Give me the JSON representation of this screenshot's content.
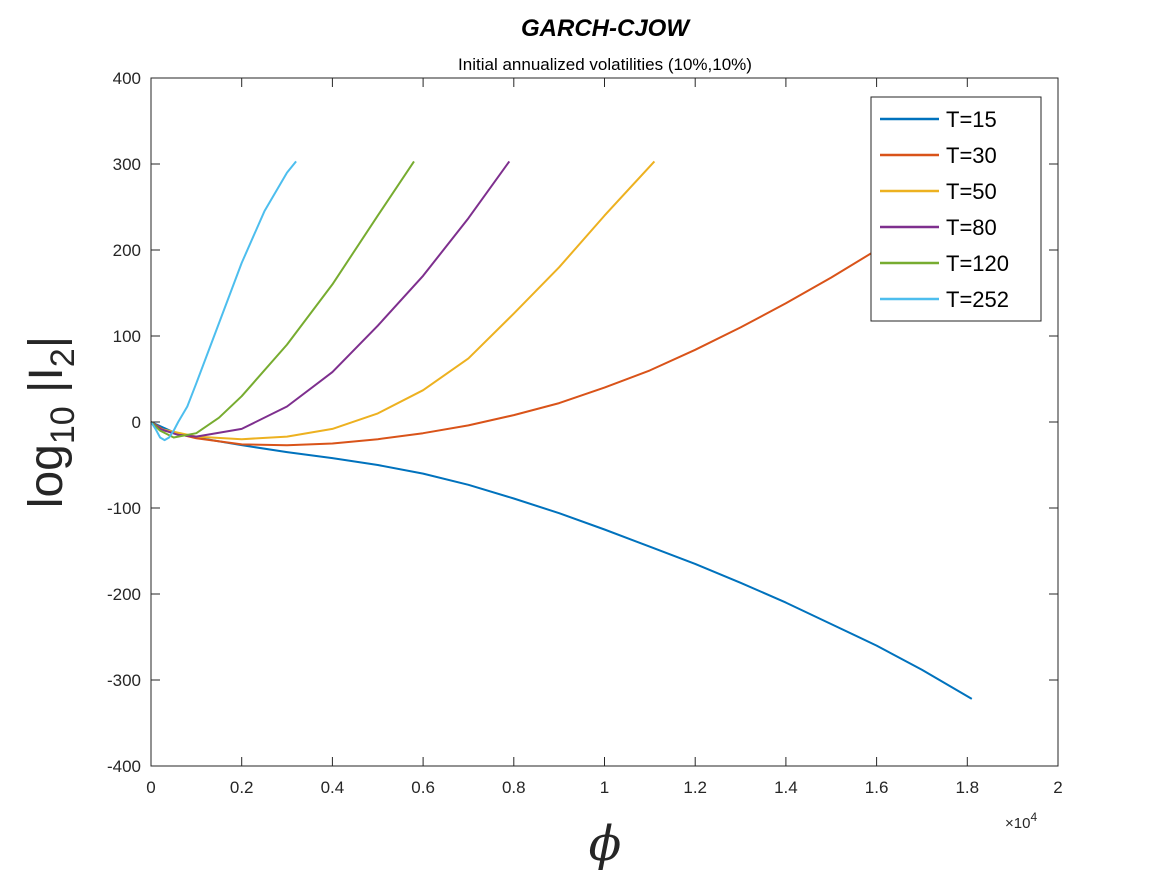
{
  "chart_data": {
    "type": "line",
    "title": "GARCH-CJOW",
    "subtitle": "Initial annualized volatilities (10%,10%)",
    "xlabel": "ϕ",
    "ylabel": "log10 |I2|",
    "ylabel_parts": {
      "base": "log",
      "sub1": "10",
      "mid": " |I",
      "sub2": "2",
      "end": "|"
    },
    "x_multiplier": "×10",
    "x_multiplier_exp": "4",
    "xlim": [
      0,
      2
    ],
    "ylim": [
      -400,
      400
    ],
    "xticks": [
      "0",
      "0.2",
      "0.4",
      "0.6",
      "0.8",
      "1",
      "1.2",
      "1.4",
      "1.6",
      "1.8",
      "2"
    ],
    "yticks": [
      "400",
      "300",
      "200",
      "100",
      "0",
      "-100",
      "-200",
      "-300",
      "-400"
    ],
    "grid": false,
    "legend_position": "top-right",
    "series": [
      {
        "name": "T=15",
        "color": "#0072BD",
        "x": [
          0,
          0.05,
          0.1,
          0.2,
          0.3,
          0.4,
          0.5,
          0.6,
          0.7,
          0.8,
          0.9,
          1.0,
          1.1,
          1.2,
          1.3,
          1.4,
          1.5,
          1.6,
          1.7,
          1.81
        ],
        "y": [
          0,
          -12,
          -18,
          -27,
          -35,
          -42,
          -50,
          -60,
          -73,
          -89,
          -106,
          -125,
          -145,
          -165,
          -187,
          -210,
          -235,
          -260,
          -288,
          -322
        ]
      },
      {
        "name": "T=30",
        "color": "#D95319",
        "x": [
          0,
          0.03,
          0.1,
          0.2,
          0.3,
          0.4,
          0.5,
          0.6,
          0.7,
          0.8,
          0.9,
          1.0,
          1.1,
          1.2,
          1.3,
          1.4,
          1.5,
          1.6
        ],
        "y": [
          0,
          -10,
          -19,
          -26,
          -27,
          -25,
          -20,
          -13,
          -4,
          8,
          22,
          40,
          60,
          84,
          110,
          138,
          168,
          200
        ]
      },
      {
        "name": "T=50",
        "color": "#EDB120",
        "x": [
          0,
          0.02,
          0.1,
          0.2,
          0.3,
          0.4,
          0.5,
          0.6,
          0.7,
          0.8,
          0.9,
          1.0,
          1.11
        ],
        "y": [
          0,
          -8,
          -17,
          -20,
          -17,
          -8,
          10,
          37,
          74,
          126,
          180,
          240,
          303
        ]
      },
      {
        "name": "T=80",
        "color": "#7E2F8E",
        "x": [
          0,
          0.02,
          0.06,
          0.1,
          0.2,
          0.3,
          0.4,
          0.5,
          0.6,
          0.7,
          0.79
        ],
        "y": [
          0,
          -8,
          -15,
          -17,
          -8,
          18,
          58,
          112,
          170,
          237,
          303
        ]
      },
      {
        "name": "T=120",
        "color": "#77AC30",
        "x": [
          0,
          0.02,
          0.05,
          0.1,
          0.15,
          0.2,
          0.3,
          0.4,
          0.5,
          0.58
        ],
        "y": [
          0,
          -10,
          -18,
          -13,
          5,
          30,
          90,
          160,
          240,
          303
        ]
      },
      {
        "name": "T=252",
        "color": "#4DBEEE",
        "x": [
          0,
          0.01,
          0.02,
          0.03,
          0.04,
          0.05,
          0.06,
          0.08,
          0.1,
          0.15,
          0.2,
          0.25,
          0.3,
          0.32
        ],
        "y": [
          0,
          -8,
          -18,
          -21,
          -18,
          -10,
          0,
          18,
          45,
          115,
          185,
          245,
          290,
          303
        ]
      }
    ]
  }
}
